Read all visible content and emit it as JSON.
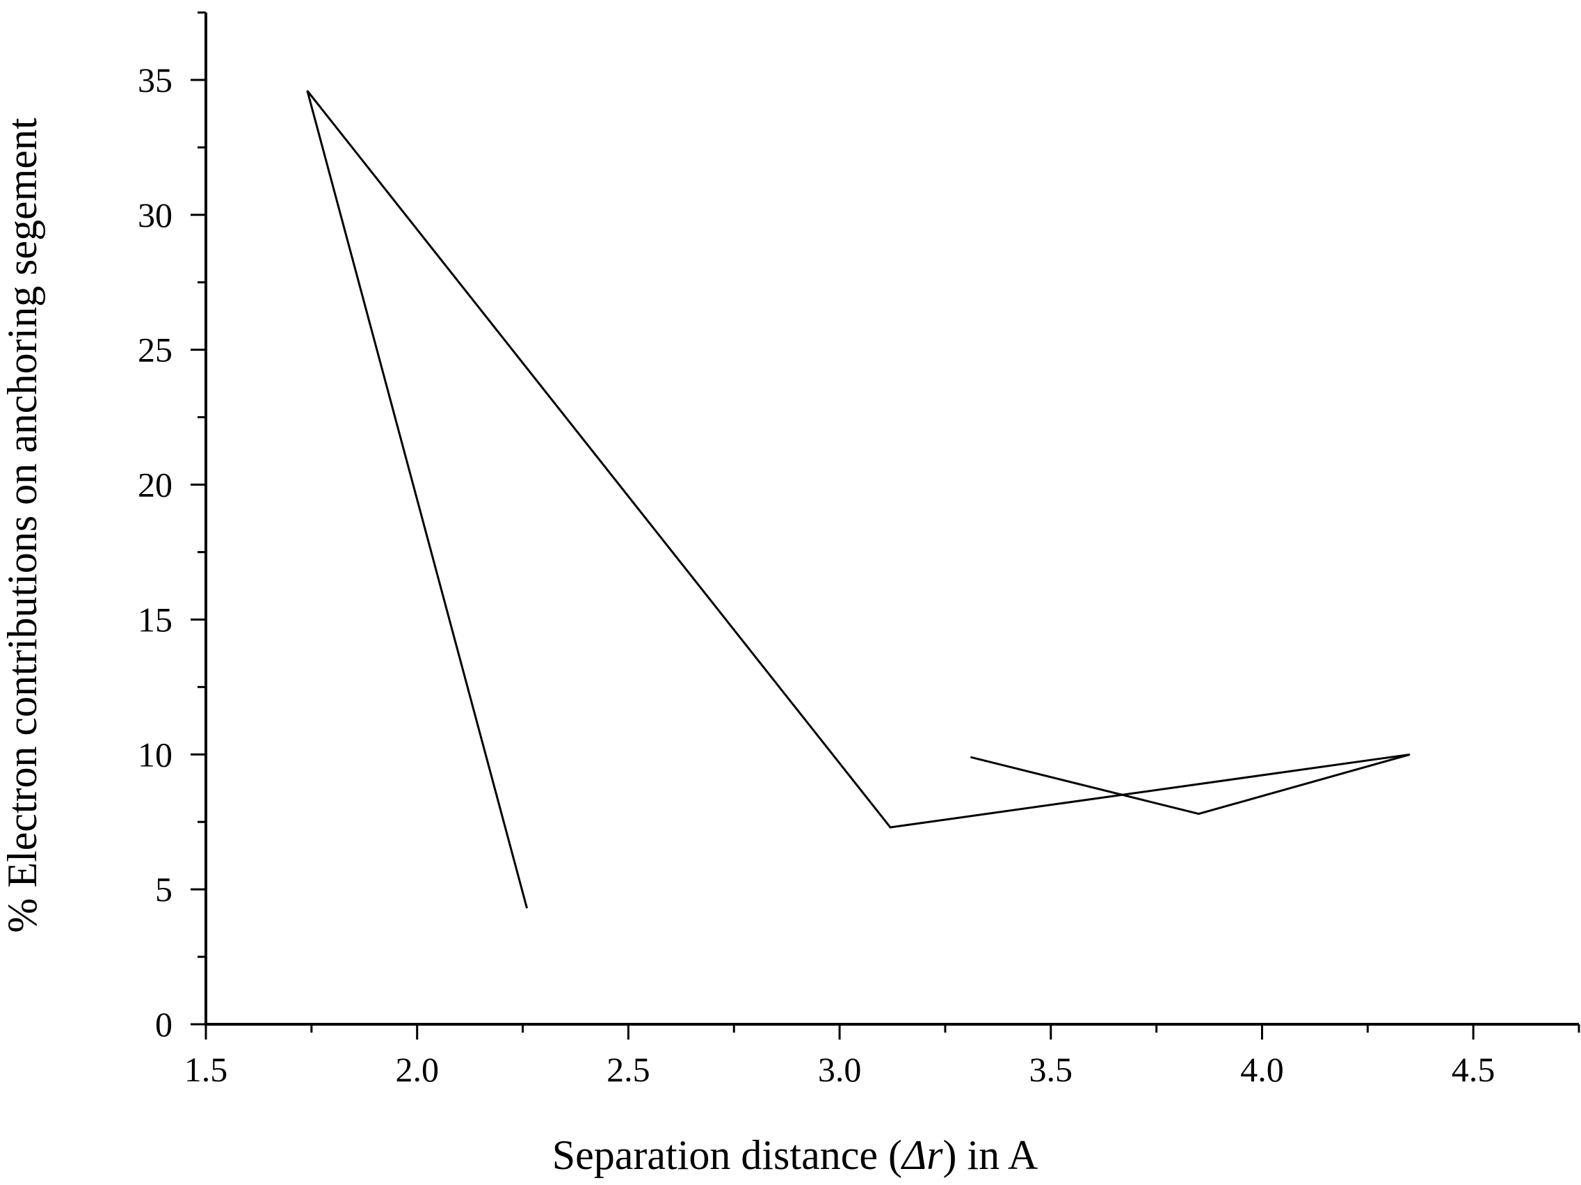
{
  "chart_data": {
    "type": "line",
    "title": "",
    "xlabel_parts": {
      "prefix": "Separation distance (",
      "symbol": "Δr",
      "suffix": ") in A"
    },
    "ylabel": "% Electron contributions on anchoring segement",
    "xlim": [
      1.5,
      4.75
    ],
    "ylim": [
      0,
      37.5
    ],
    "x_ticks": [
      1.5,
      2.0,
      2.5,
      3.0,
      3.5,
      4.0,
      4.5
    ],
    "x_tick_labels": [
      "1.5",
      "2.0",
      "2.5",
      "3.0",
      "3.5",
      "4.0",
      "4.5"
    ],
    "y_ticks": [
      0,
      5,
      10,
      15,
      20,
      25,
      30,
      35
    ],
    "y_tick_labels": [
      "0",
      "5",
      "10",
      "15",
      "20",
      "25",
      "30",
      "35"
    ],
    "grid": false,
    "legend": "none",
    "line_color": "#000000",
    "series": [
      {
        "points": [
          {
            "x": 1.74,
            "y": 34.6
          },
          {
            "x": 2.26,
            "y": 4.3
          },
          {
            "x": 1.74,
            "y": 34.6
          },
          {
            "x": 3.12,
            "y": 7.3
          },
          {
            "x": 4.35,
            "y": 10.0
          },
          {
            "x": 3.85,
            "y": 7.8
          },
          {
            "x": 3.31,
            "y": 9.9
          }
        ]
      }
    ]
  }
}
